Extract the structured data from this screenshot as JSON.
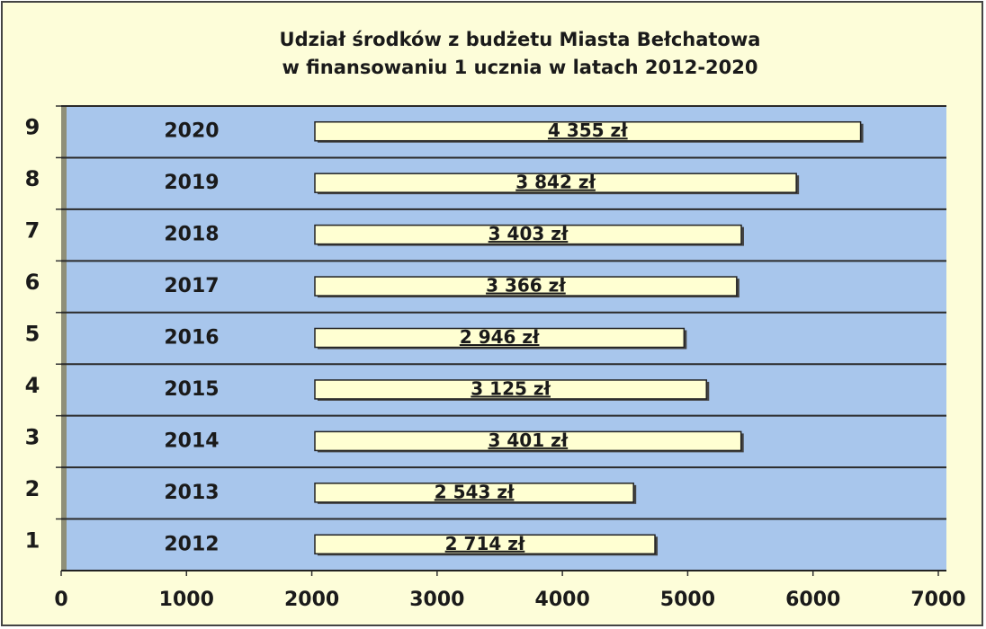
{
  "chart_data": {
    "type": "bar",
    "orientation": "horizontal",
    "title": [
      "Udział środków z budżetu Miasta Bełchatowa",
      "w finansowaniu 1 ucznia w latach 2012-2020"
    ],
    "categories": [
      "1",
      "2",
      "3",
      "4",
      "5",
      "6",
      "7",
      "8",
      "9"
    ],
    "years": [
      "2012",
      "2013",
      "2014",
      "2015",
      "2016",
      "2017",
      "2018",
      "2019",
      "2020"
    ],
    "values": [
      2714,
      2543,
      3401,
      3125,
      2946,
      3366,
      3403,
      3842,
      4355
    ],
    "value_labels": [
      "2 714 zł",
      "2 543 zł",
      "3 401 zł",
      "3 125 zł",
      "2 946 zł",
      "3 366 zł",
      "3 403 zł",
      "3 842 zł",
      "4 355 zł"
    ],
    "color": "#ffffd2",
    "xlim": [
      0,
      7000
    ],
    "xticks": [
      0,
      1000,
      2000,
      3000,
      4000,
      5000,
      6000,
      7000
    ],
    "grid": true
  }
}
